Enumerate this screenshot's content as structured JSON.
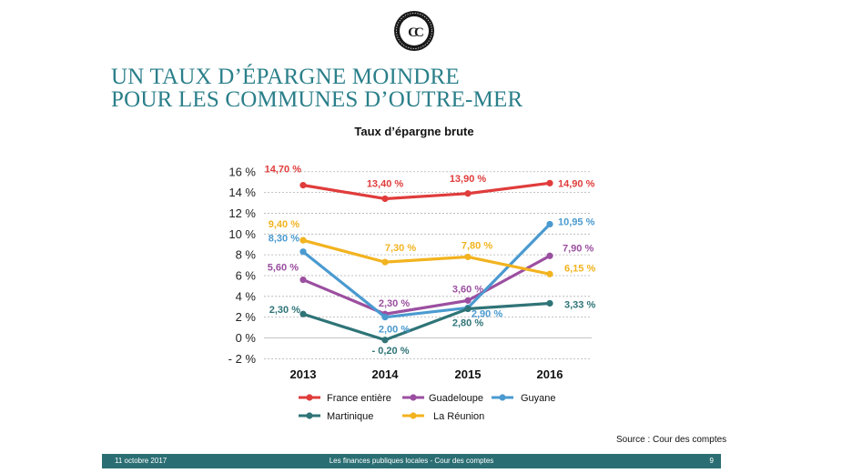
{
  "brand": {
    "logo_icon": "cour-des-comptes-seal-icon",
    "logo_letters": "CC"
  },
  "slide": {
    "title_line1": "UN TAUX D’ÉPARGNE MOINDRE",
    "title_line2": "POUR LES COMMUNES D’OUTRE-MER",
    "source": "Source : Cour des comptes"
  },
  "footer": {
    "date": "11 octobre 2017",
    "center": "Les finances publiques locales - Cour des comptes",
    "page": "9"
  },
  "colors": {
    "title": "#2a7f8a",
    "footer_bg": "#2a6e73",
    "grid": "#b0b0b0"
  },
  "chart_data": {
    "type": "line",
    "title": "Taux d’épargne brute",
    "categories": [
      "2013",
      "2014",
      "2015",
      "2016"
    ],
    "ylim": [
      -2,
      16
    ],
    "yticks": [
      "- 2 %",
      "0 %",
      "2 %",
      "4 %",
      "6 %",
      "8 %",
      "10 %",
      "12 %",
      "14 %",
      "16 %"
    ],
    "grid": true,
    "legend_position": "bottom",
    "series": [
      {
        "name": "France entière",
        "color": "#e03c3c",
        "values": [
          14.7,
          13.4,
          13.9,
          14.9
        ],
        "labels": [
          "14,70 %",
          "13,40 %",
          "13,90 %",
          "14,90 %"
        ]
      },
      {
        "name": "Guadeloupe",
        "color": "#9b4fa0",
        "values": [
          5.6,
          2.3,
          3.6,
          7.9
        ],
        "labels": [
          "5,60 %",
          "2,30 %",
          "3,60 %",
          "7,90 %"
        ]
      },
      {
        "name": "Guyane",
        "color": "#4a9ad0",
        "values": [
          8.3,
          2.0,
          2.9,
          10.95
        ],
        "labels": [
          "8,30 %",
          "2,00 %",
          "2,90 %",
          "10,95 %"
        ]
      },
      {
        "name": "Martinique",
        "color": "#2f7477",
        "values": [
          2.3,
          -0.2,
          2.8,
          3.33
        ],
        "labels": [
          "2,30 %",
          "- 0,20 %",
          "2,80 %",
          "3,33 %"
        ]
      },
      {
        "name": "La Réunion",
        "color": "#f2b31f",
        "values": [
          9.4,
          7.3,
          7.8,
          6.15
        ],
        "labels": [
          "9,40 %",
          "7,30 %",
          "7,80 %",
          "6,15 %"
        ]
      }
    ]
  }
}
